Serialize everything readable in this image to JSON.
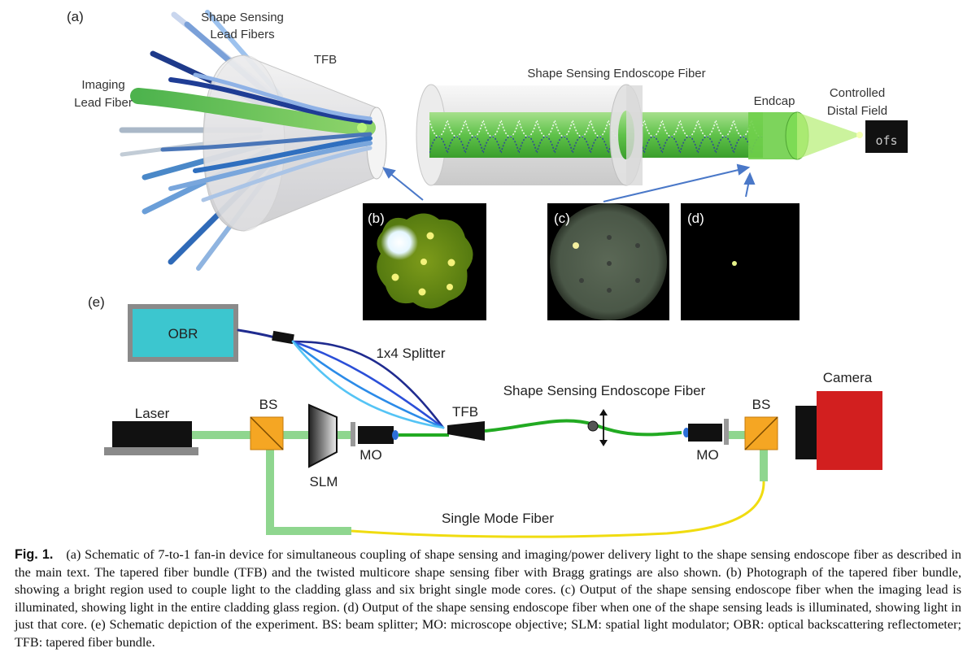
{
  "panel_a": {
    "label": "(a)",
    "shape_lead_label": [
      "Shape Sensing",
      "Lead Fibers"
    ],
    "tfb_label": "TFB",
    "imaging_label": [
      "Imaging",
      "Lead Fiber"
    ],
    "endoscope_label": "Shape Sensing Endoscope Fiber",
    "endcap_label": "Endcap",
    "distal_label": [
      "Controlled",
      "Distal Field"
    ],
    "distal_image_text": "ofs"
  },
  "insets": {
    "b_label": "(b)",
    "c_label": "(c)",
    "d_label": "(d)"
  },
  "panel_e": {
    "label": "(e)",
    "obr": "OBR",
    "splitter": "1x4 Splitter",
    "endoscope": "Shape Sensing Endoscope Fiber",
    "camera": "Camera",
    "laser": "Laser",
    "bs_left": "BS",
    "bs_right": "BS",
    "slm": "SLM",
    "mo_left": "MO",
    "mo_right": "MO",
    "tfb": "TFB",
    "single_mode": "Single Mode Fiber"
  },
  "colors": {
    "green_fiber": "#22aa22",
    "light_green_beam": "#8fd68f",
    "yellow_fiber": "#f0dc10",
    "obr_box": "#3cc6cf",
    "camera": "#d21f1f",
    "bs": "#f5a623",
    "blue_dark": "#1f2b8f"
  },
  "caption": {
    "fig_label": "Fig. 1.",
    "text": "(a) Schematic of 7-to-1 fan-in device for simultaneous coupling of shape sensing and imaging/power delivery light to the shape sensing endoscope fiber as described in the main text. The tapered fiber bundle (TFB) and the twisted multicore shape sensing fiber with Bragg gratings are also shown. (b) Photograph of the tapered fiber bundle, showing a bright region used to couple light to the cladding glass and six bright single mode cores. (c) Output of the shape sensing endoscope fiber when the imaging lead is illuminated, showing light in the entire cladding glass region. (d) Output of the shape sensing endoscope fiber when one of the shape sensing leads is illuminated, showing light in just that core. (e) Schematic depiction of the experiment. BS: beam splitter; MO: microscope objective; SLM: spatial light modulator; OBR: optical backscattering reflectometer; TFB: tapered fiber bundle."
  }
}
